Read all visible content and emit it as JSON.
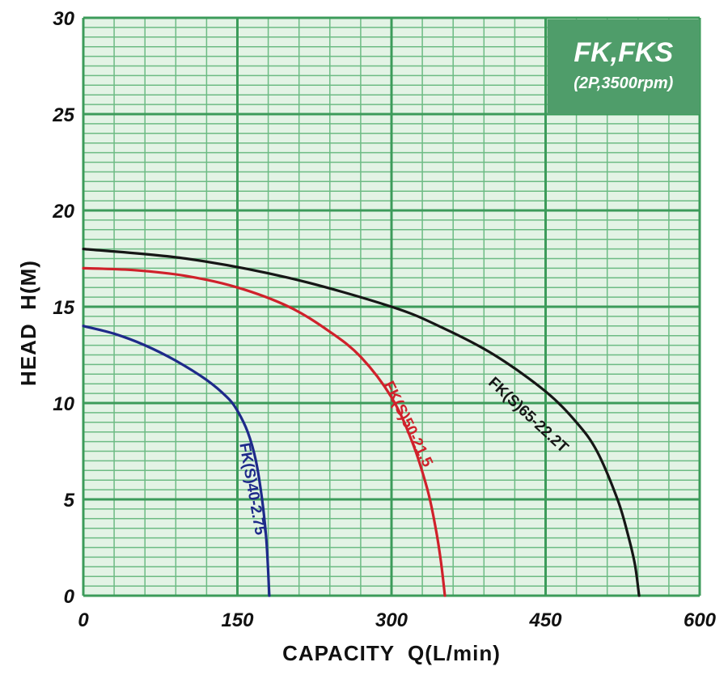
{
  "chart_data": {
    "type": "line",
    "title": "FK,FKS",
    "subtitle": "(2P,3500rpm)",
    "xlabel": "CAPACITY  Q(L/min)",
    "ylabel": "HEAD  H(M)",
    "xlim": [
      0,
      600
    ],
    "ylim": [
      0,
      30
    ],
    "x_ticks": [
      "0",
      "150",
      "300",
      "450",
      "600"
    ],
    "y_ticks": [
      "0",
      "5",
      "10",
      "15",
      "20",
      "25",
      "30"
    ],
    "grid": true,
    "background_color": "#e3f3e5",
    "grid_major_color": "#3c9b5a",
    "grid_minor_color": "#6dbb84",
    "title_box_color": "#4f9d6a",
    "series": [
      {
        "name": "FK(S)40-2.75",
        "color": "#1e2a8a",
        "x": [
          0,
          30,
          60,
          90,
          120,
          140,
          150,
          160,
          168,
          174,
          178,
          180,
          181
        ],
        "y": [
          14.0,
          13.6,
          13.0,
          12.2,
          11.2,
          10.3,
          9.6,
          8.5,
          7.0,
          5.0,
          3.0,
          1.2,
          0
        ]
      },
      {
        "name": "FK(S)50-21.5",
        "color": "#d0212b",
        "x": [
          0,
          50,
          100,
          150,
          200,
          240,
          270,
          300,
          320,
          335,
          343,
          348,
          352
        ],
        "y": [
          17.0,
          16.9,
          16.6,
          16.0,
          15.0,
          13.7,
          12.4,
          10.3,
          8.0,
          5.5,
          3.5,
          1.8,
          0
        ]
      },
      {
        "name": "FK(S)65-22.2T",
        "color": "#161616",
        "x": [
          0,
          100,
          200,
          300,
          350,
          400,
          450,
          480,
          500,
          520,
          530,
          537,
          541
        ],
        "y": [
          18.0,
          17.5,
          16.5,
          15.0,
          13.9,
          12.5,
          10.6,
          9.0,
          7.5,
          5.0,
          3.2,
          1.6,
          0
        ]
      }
    ]
  }
}
